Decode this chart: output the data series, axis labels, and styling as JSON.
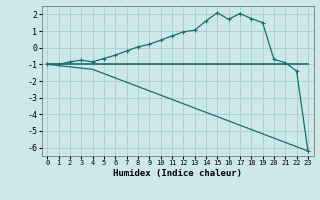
{
  "xlabel": "Humidex (Indice chaleur)",
  "ylabel": "",
  "bg_color": "#cce8e8",
  "grid_color": "#aacccc",
  "line_color": "#1a6e6e",
  "xlim": [
    -0.5,
    23.5
  ],
  "ylim": [
    -6.5,
    2.5
  ],
  "xticks": [
    0,
    1,
    2,
    3,
    4,
    5,
    6,
    7,
    8,
    9,
    10,
    11,
    12,
    13,
    14,
    15,
    16,
    17,
    18,
    19,
    20,
    21,
    22,
    23
  ],
  "yticks": [
    -6,
    -5,
    -4,
    -3,
    -2,
    -1,
    0,
    1,
    2
  ],
  "line1_x": [
    0,
    1,
    2,
    3,
    4,
    5,
    6,
    7,
    8,
    9,
    10,
    11,
    12,
    13,
    14,
    15,
    16,
    17,
    18,
    19,
    20,
    21,
    22,
    23
  ],
  "line1_y": [
    -1.0,
    -1.0,
    -0.85,
    -0.75,
    -0.85,
    -0.65,
    -0.45,
    -0.2,
    0.05,
    0.2,
    0.45,
    0.7,
    0.95,
    1.05,
    1.6,
    2.1,
    1.7,
    2.05,
    1.75,
    1.5,
    -0.7,
    -0.9,
    -1.4,
    -6.2
  ],
  "line2_x": [
    0,
    1,
    2,
    3,
    4,
    5,
    6,
    7,
    8,
    9,
    10,
    11,
    12,
    13,
    14,
    15,
    16,
    17,
    18,
    19,
    20,
    21,
    22,
    23
  ],
  "line2_y": [
    -1.0,
    -1.0,
    -1.0,
    -1.0,
    -1.0,
    -1.0,
    -1.0,
    -1.0,
    -1.0,
    -1.0,
    -1.0,
    -1.0,
    -1.0,
    -1.0,
    -1.0,
    -1.0,
    -1.0,
    -1.0,
    -1.0,
    -1.0,
    -1.0,
    -1.0,
    -1.0,
    -1.0
  ],
  "line3_x": [
    0,
    4,
    23
  ],
  "line3_y": [
    -1.0,
    -1.3,
    -6.2
  ],
  "marker": "+"
}
